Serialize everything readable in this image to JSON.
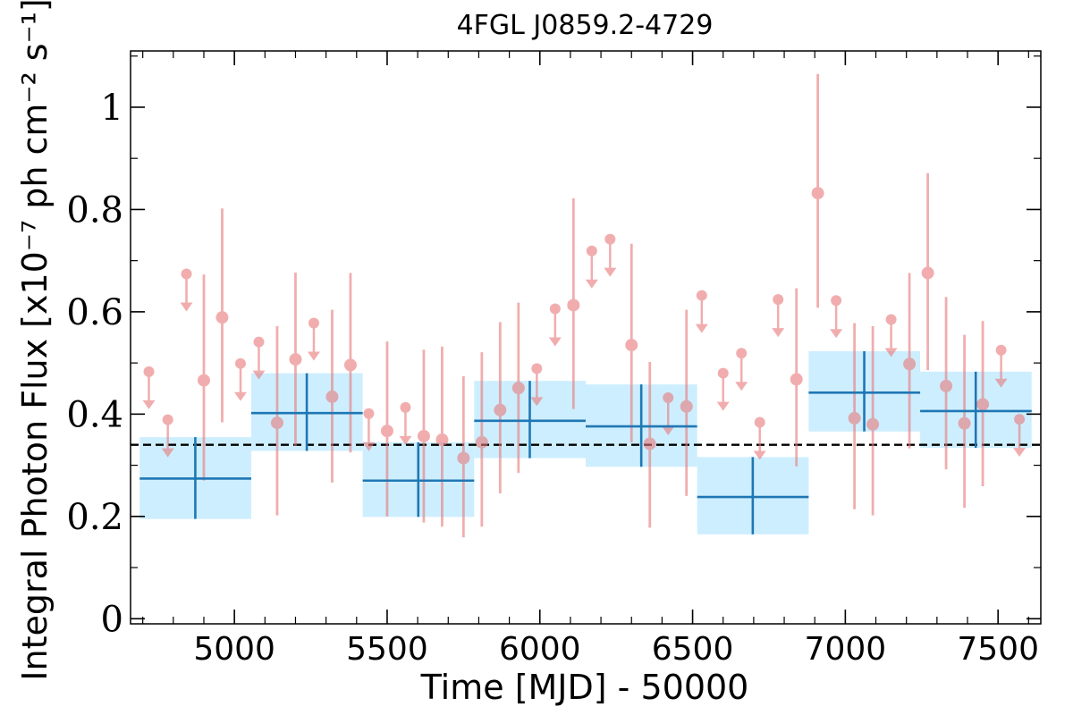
{
  "chart_data": {
    "type": "scatter",
    "title": "4FGL J0859.2-4729",
    "xlabel": "Time [MJD] - 50000",
    "ylabel": "Integral Photon Flux [x10⁻⁷ ph cm⁻² s⁻¹]",
    "xlim": [
      4660,
      7640
    ],
    "ylim": [
      -0.01,
      1.11
    ],
    "x_ticks": [
      5000,
      5500,
      6000,
      6500,
      7000,
      7500
    ],
    "x_tick_labels": [
      "5000",
      "5500",
      "6000",
      "6500",
      "7000",
      "7500"
    ],
    "y_ticks": [
      0,
      0.2,
      0.4,
      0.6,
      0.8,
      1.0
    ],
    "y_tick_labels": [
      "0",
      "0.2",
      "0.4",
      "0.6",
      "0.8",
      "1"
    ],
    "grid": false,
    "reference_line": {
      "y": 0.34,
      "style": "dashed",
      "color": "#000000"
    },
    "colors": {
      "yearly": "#1f77b4",
      "yearly_band": "#cdeefe",
      "monthly": "#e8787a"
    },
    "series": [
      {
        "kind": "binned",
        "bins": [
          {
            "x0": 4690,
            "x1": 5055,
            "x": 4872,
            "y": 0.274,
            "lo": 0.195,
            "hi": 0.355
          },
          {
            "x0": 5055,
            "x1": 5420,
            "x": 5237,
            "y": 0.402,
            "lo": 0.328,
            "hi": 0.48
          },
          {
            "x0": 5420,
            "x1": 5785,
            "x": 5602,
            "y": 0.27,
            "lo": 0.199,
            "hi": 0.345
          },
          {
            "x0": 5785,
            "x1": 6150,
            "x": 5967,
            "y": 0.387,
            "lo": 0.314,
            "hi": 0.465
          },
          {
            "x0": 6150,
            "x1": 6515,
            "x": 6332,
            "y": 0.376,
            "lo": 0.297,
            "hi": 0.458
          },
          {
            "x0": 6515,
            "x1": 6880,
            "x": 6697,
            "y": 0.238,
            "lo": 0.165,
            "hi": 0.316
          },
          {
            "x0": 6880,
            "x1": 7245,
            "x": 7062,
            "y": 0.442,
            "lo": 0.366,
            "hi": 0.523
          },
          {
            "x0": 7245,
            "x1": 7610,
            "x": 7427,
            "y": 0.406,
            "lo": 0.334,
            "hi": 0.483
          }
        ]
      },
      {
        "kind": "upper_limits",
        "points": [
          {
            "x": 4720,
            "y": 0.483
          },
          {
            "x": 4782,
            "y": 0.389
          },
          {
            "x": 4843,
            "y": 0.674
          },
          {
            "x": 5020,
            "y": 0.499
          },
          {
            "x": 5080,
            "y": 0.541
          },
          {
            "x": 5260,
            "y": 0.578
          },
          {
            "x": 5440,
            "y": 0.401
          },
          {
            "x": 5560,
            "y": 0.413
          },
          {
            "x": 5990,
            "y": 0.489
          },
          {
            "x": 6050,
            "y": 0.606
          },
          {
            "x": 6170,
            "y": 0.719
          },
          {
            "x": 6230,
            "y": 0.742
          },
          {
            "x": 6420,
            "y": 0.432
          },
          {
            "x": 6530,
            "y": 0.632
          },
          {
            "x": 6600,
            "y": 0.48
          },
          {
            "x": 6660,
            "y": 0.519
          },
          {
            "x": 6720,
            "y": 0.384
          },
          {
            "x": 6780,
            "y": 0.624
          },
          {
            "x": 6970,
            "y": 0.622
          },
          {
            "x": 7150,
            "y": 0.585
          },
          {
            "x": 7510,
            "y": 0.525
          },
          {
            "x": 7570,
            "y": 0.39
          }
        ]
      },
      {
        "kind": "detections",
        "points": [
          {
            "x": 4900,
            "y": 0.466,
            "lo": 0.27,
            "hi": 0.673
          },
          {
            "x": 4960,
            "y": 0.589,
            "lo": 0.384,
            "hi": 0.802
          },
          {
            "x": 5140,
            "y": 0.383,
            "lo": 0.202,
            "hi": 0.572
          },
          {
            "x": 5200,
            "y": 0.507,
            "lo": 0.338,
            "hi": 0.677
          },
          {
            "x": 5320,
            "y": 0.434,
            "lo": 0.266,
            "hi": 0.604
          },
          {
            "x": 5380,
            "y": 0.496,
            "lo": 0.325,
            "hi": 0.676
          },
          {
            "x": 5500,
            "y": 0.367,
            "lo": 0.2,
            "hi": 0.542
          },
          {
            "x": 5620,
            "y": 0.357,
            "lo": 0.188,
            "hi": 0.526
          },
          {
            "x": 5680,
            "y": 0.35,
            "lo": 0.18,
            "hi": 0.532
          },
          {
            "x": 5750,
            "y": 0.314,
            "lo": 0.159,
            "hi": 0.474
          },
          {
            "x": 5810,
            "y": 0.345,
            "lo": 0.18,
            "hi": 0.521
          },
          {
            "x": 5870,
            "y": 0.408,
            "lo": 0.245,
            "hi": 0.58
          },
          {
            "x": 5930,
            "y": 0.451,
            "lo": 0.285,
            "hi": 0.618
          },
          {
            "x": 6110,
            "y": 0.613,
            "lo": 0.41,
            "hi": 0.822
          },
          {
            "x": 6300,
            "y": 0.535,
            "lo": 0.345,
            "hi": 0.733
          },
          {
            "x": 6360,
            "y": 0.342,
            "lo": 0.178,
            "hi": 0.502
          },
          {
            "x": 6480,
            "y": 0.415,
            "lo": 0.24,
            "hi": 0.604
          },
          {
            "x": 6840,
            "y": 0.468,
            "lo": 0.298,
            "hi": 0.646
          },
          {
            "x": 6910,
            "y": 0.832,
            "lo": 0.608,
            "hi": 1.065
          },
          {
            "x": 7030,
            "y": 0.392,
            "lo": 0.214,
            "hi": 0.578
          },
          {
            "x": 7090,
            "y": 0.38,
            "lo": 0.202,
            "hi": 0.572
          },
          {
            "x": 7210,
            "y": 0.498,
            "lo": 0.333,
            "hi": 0.676
          },
          {
            "x": 7270,
            "y": 0.676,
            "lo": 0.486,
            "hi": 0.871
          },
          {
            "x": 7330,
            "y": 0.455,
            "lo": 0.292,
            "hi": 0.629
          },
          {
            "x": 7390,
            "y": 0.382,
            "lo": 0.217,
            "hi": 0.555
          },
          {
            "x": 7450,
            "y": 0.419,
            "lo": 0.259,
            "hi": 0.582
          }
        ]
      }
    ]
  }
}
